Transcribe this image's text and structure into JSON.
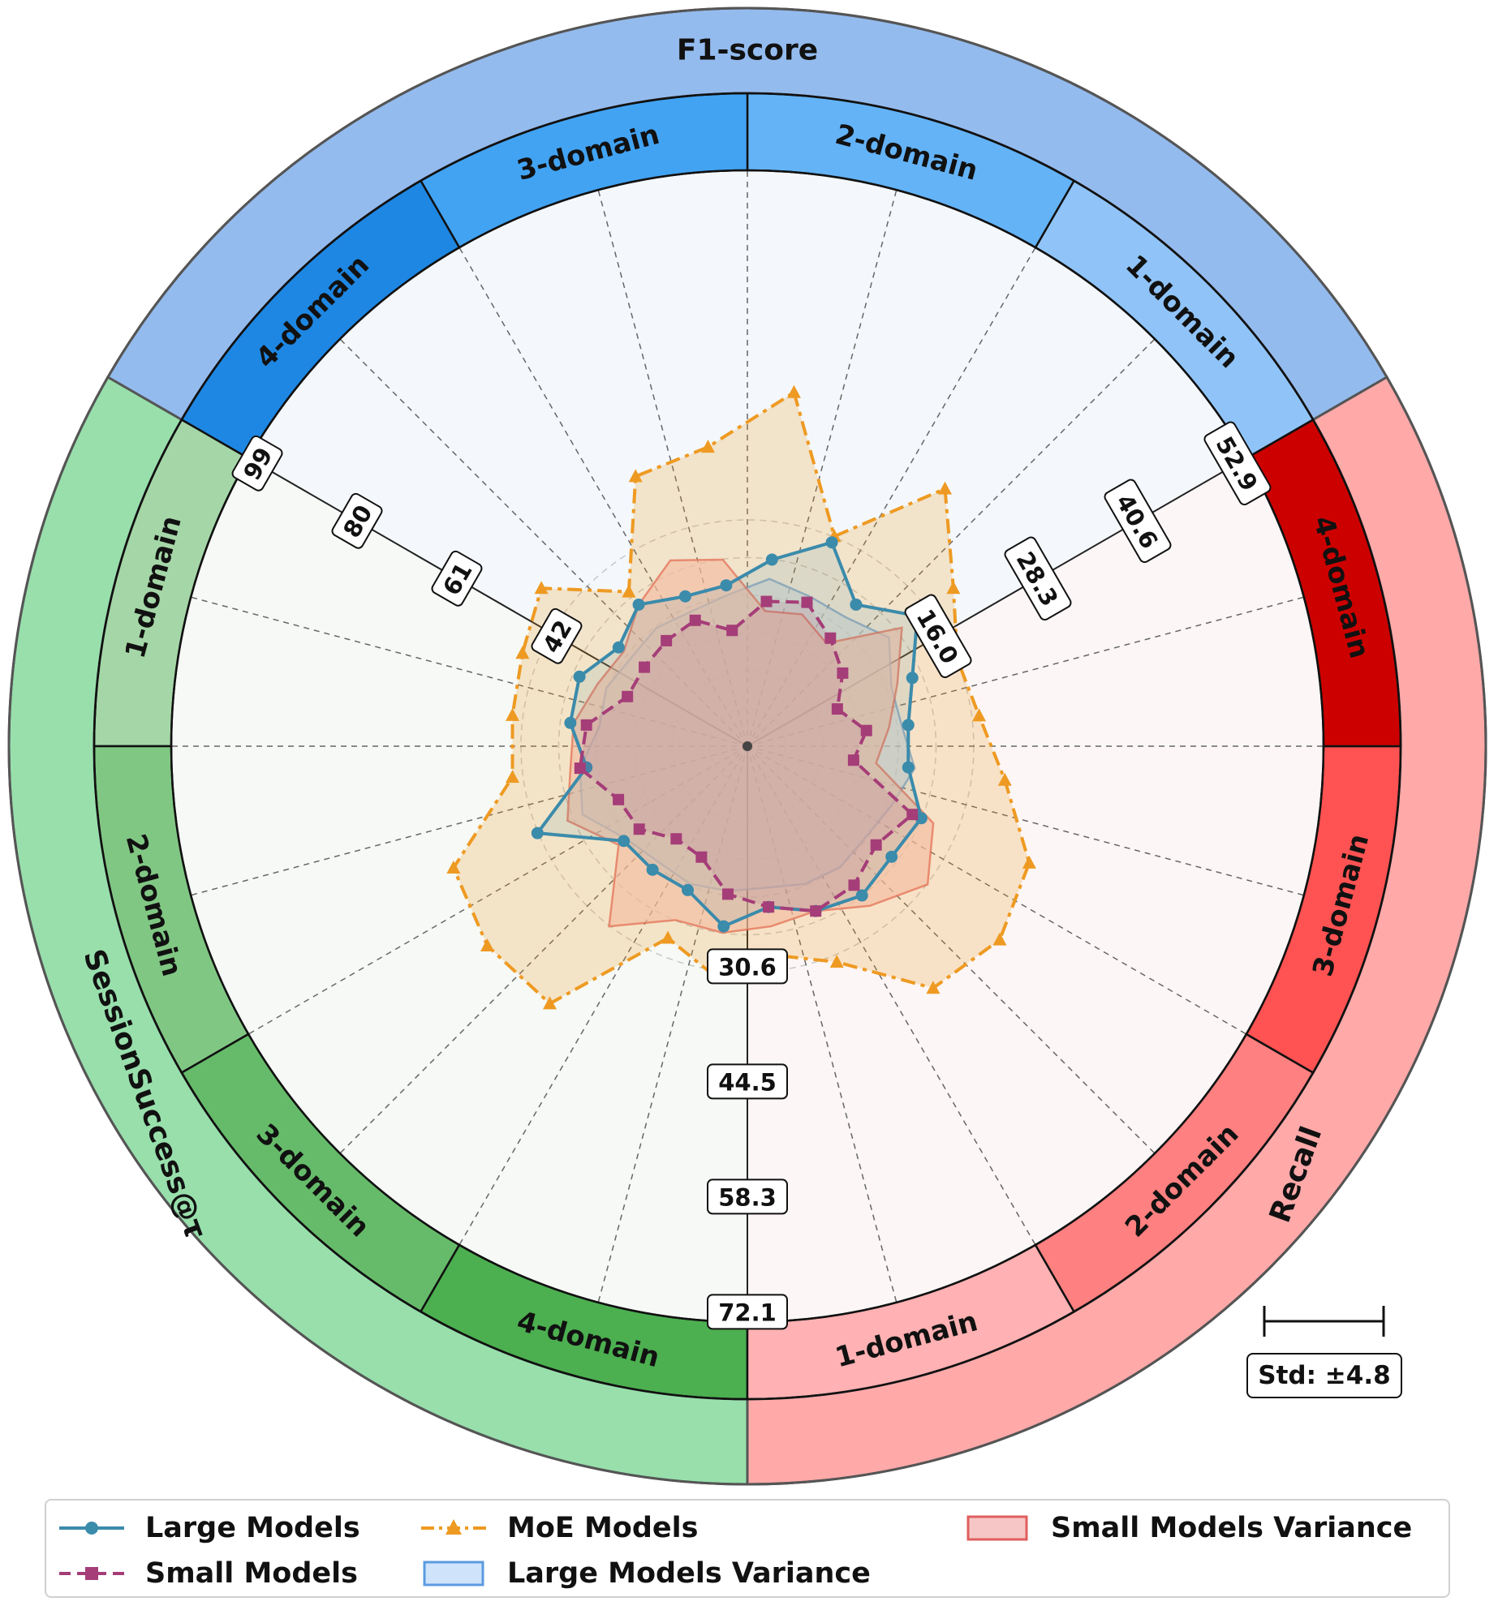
{
  "chart_data": {
    "type": "radar",
    "sectors": [
      {
        "name": "F1-score",
        "color": "#94bbee",
        "subs": [
          {
            "label": "1-domain",
            "color": "#90c4f8"
          },
          {
            "label": "2-domain",
            "color": "#64b3f6"
          },
          {
            "label": "3-domain",
            "color": "#42a3f3"
          },
          {
            "label": "4-domain",
            "color": "#1e87e3"
          }
        ]
      },
      {
        "name": "SessionSuccess@τ",
        "color": "#98dfac",
        "subs": [
          {
            "label": "1-domain",
            "color": "#a5d6a7"
          },
          {
            "label": "2-domain",
            "color": "#81c784"
          },
          {
            "label": "3-domain",
            "color": "#66bb6a"
          },
          {
            "label": "4-domain",
            "color": "#4caf50"
          }
        ]
      },
      {
        "name": "Recall",
        "color": "#ffa9a9",
        "subs": [
          {
            "label": "1-domain",
            "color": "#ffb1b3"
          },
          {
            "label": "2-domain",
            "color": "#fe8080"
          },
          {
            "label": "3-domain",
            "color": "#ff5252"
          },
          {
            "label": "4-domain",
            "color": "#cd0000"
          }
        ]
      }
    ],
    "axis_ticks": {
      "session": [
        "42",
        "61",
        "80",
        "99"
      ],
      "recall": [
        "16.0",
        "28.3",
        "40.6",
        "52.9"
      ],
      "f1": [
        "30.6",
        "44.5",
        "58.3",
        "72.1"
      ]
    },
    "series": [
      {
        "name": "Large Models",
        "color": "#3b8bab",
        "values": [
          0.58,
          0.68,
          0.55,
          0.66,
          0.55,
          0.5,
          0.5,
          0.58,
          0.56,
          0.58,
          0.55,
          0.5,
          0.56,
          0.48,
          0.48,
          0.48,
          0.7,
          0.5,
          0.55,
          0.56,
          0.5,
          0.55,
          0.5,
          0.5
        ]
      },
      {
        "name": "Small Models",
        "color": "#a53d78",
        "values": [
          0.45,
          0.48,
          0.42,
          0.37,
          0.3,
          0.37,
          0.33,
          0.55,
          0.5,
          0.54,
          0.55,
          0.5,
          0.46,
          0.37,
          0.36,
          0.42,
          0.43,
          0.52,
          0.5,
          0.4,
          0.4,
          0.41,
          0.42,
          0.36
        ]
      },
      {
        "name": "MoE Models",
        "color": "#ee9a22",
        "values": [
          1.1,
          0.7,
          1.0,
          0.8,
          0.7,
          0.72,
          0.8,
          0.94,
          0.98,
          0.94,
          0.72,
          0.65,
          0.72,
          0.64,
          1.0,
          1.01,
          0.98,
          0.73,
          0.73,
          0.75,
          0.8,
          0.6,
          0.9,
          0.93
        ]
      }
    ],
    "variance": [
      {
        "name": "Large Models Variance",
        "color": "#5b9be0",
        "fill": "#cfe4fb",
        "radii": [
          0.52,
          0.5,
          0.5,
          0.55,
          0.48,
          0.48,
          0.52,
          0.48,
          0.46,
          0.47,
          0.46,
          0.44,
          0.45,
          0.46,
          0.45,
          0.47,
          0.55,
          0.52,
          0.46,
          0.47,
          0.45,
          0.46,
          0.45,
          0.47
        ]
      },
      {
        "name": "Small Models Variance",
        "color": "#e05e5e",
        "fill": "#f6c6c6",
        "radii": [
          0.42,
          0.44,
          0.4,
          0.6,
          0.5,
          0.44,
          0.4,
          0.62,
          0.7,
          0.62,
          0.55,
          0.56,
          0.58,
          0.58,
          0.7,
          0.5,
          0.6,
          0.55,
          0.54,
          0.5,
          0.48,
          0.55,
          0.62,
          0.58
        ]
      }
    ],
    "std_label": "Std: ±4.8",
    "legend_position": "bottom",
    "grid": true
  },
  "legend": {
    "large": "Large Models",
    "small": "Small Models",
    "moe": "MoE Models",
    "large_var": "Large Models Variance",
    "small_var": "Small Models Variance"
  }
}
